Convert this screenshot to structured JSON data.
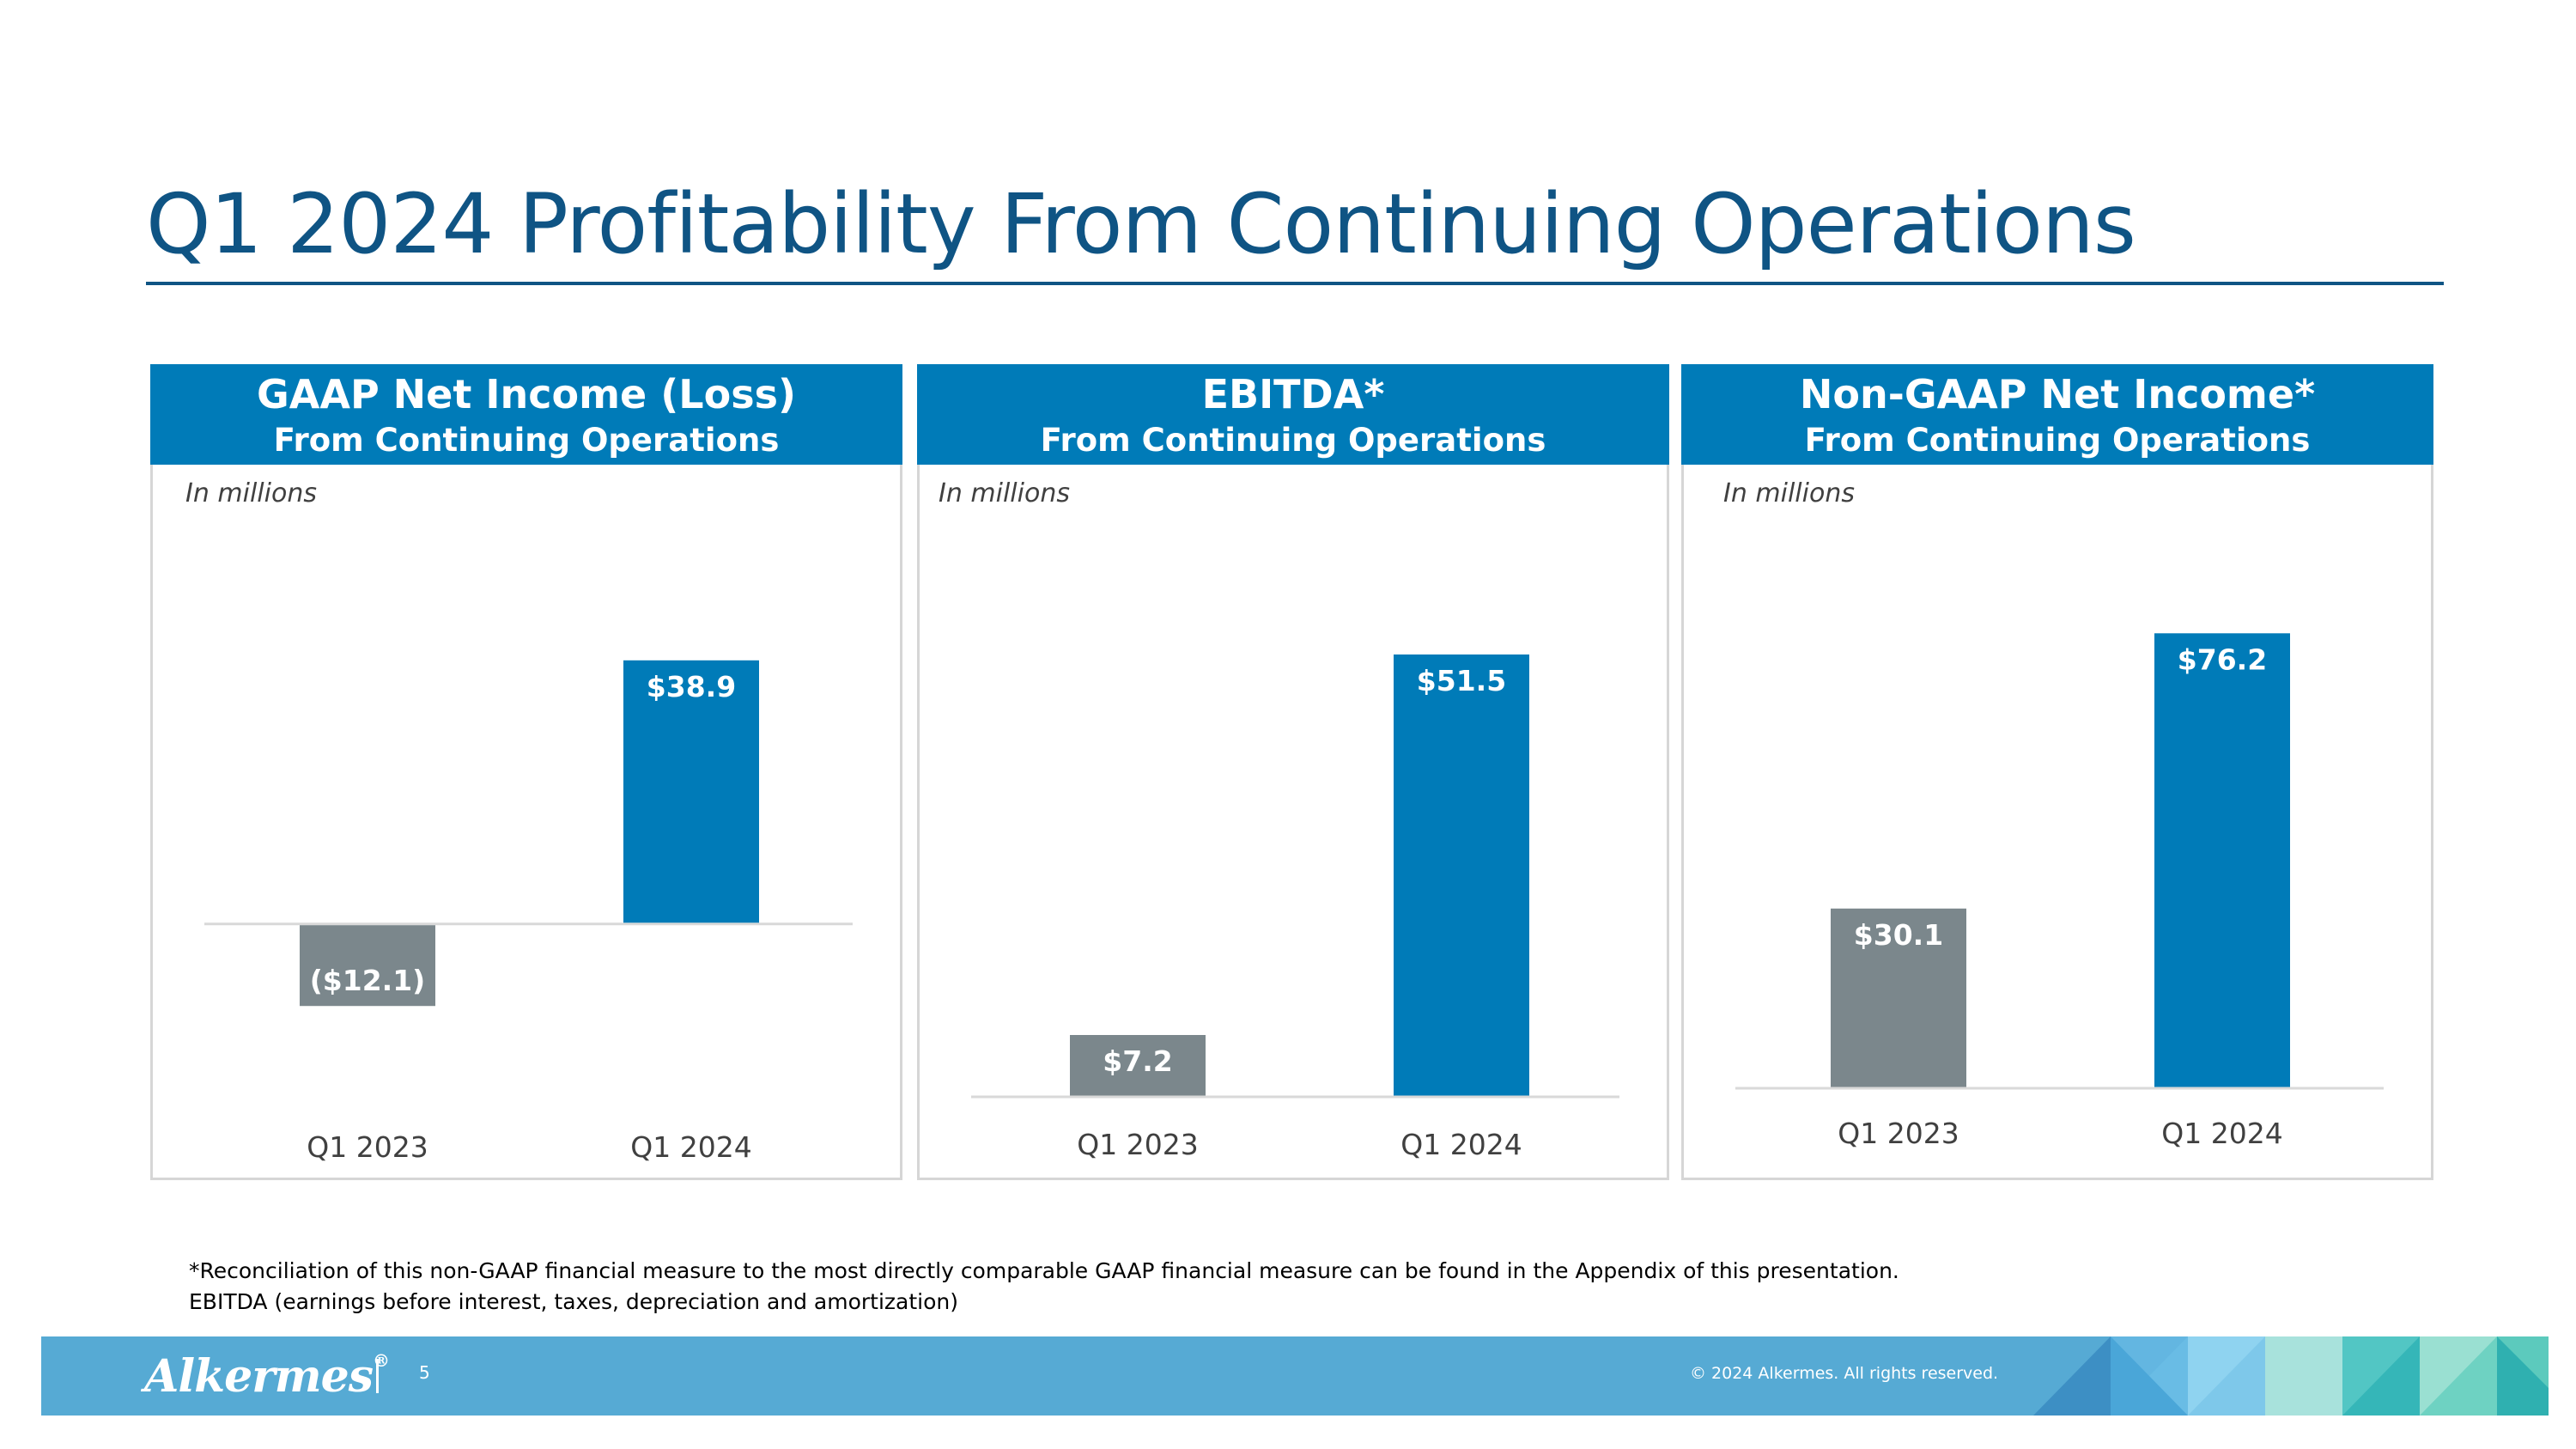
{
  "slide": {
    "title": "Q1 2024 Profitability From Continuing Operations",
    "page_number": "5",
    "copyright": "© 2024 Alkermes. All rights reserved.",
    "logo_text": "Alkermes",
    "logo_mark": "®"
  },
  "footnotes": [
    "*Reconciliation of this non-GAAP financial measure to the most directly comparable GAAP financial measure can be found in the Appendix of this presentation.",
    "EBITDA (earnings before interest, taxes, depreciation and amortization)"
  ],
  "colors": {
    "title": "#0f5484",
    "header": "#007bb8",
    "bar_prior": "#7b878c",
    "bar_current": "#007bb8",
    "footer": "#56aad4"
  },
  "chart_data": [
    {
      "type": "bar",
      "title": "GAAP Net Income (Loss)",
      "subtitle": "From Continuing Operations",
      "units_note": "In millions",
      "categories": [
        "Q1 2023",
        "Q1 2024"
      ],
      "values": [
        -12.1,
        38.9
      ],
      "labels": [
        "($12.1)",
        "$38.9"
      ],
      "ylim": [
        -16,
        48
      ]
    },
    {
      "type": "bar",
      "title": "EBITDA*",
      "subtitle": "From Continuing Operations",
      "units_note": "In millions",
      "categories": [
        "Q1 2023",
        "Q1 2024"
      ],
      "values": [
        7.2,
        51.5
      ],
      "labels": [
        "$7.2",
        "$51.5"
      ],
      "ylim": [
        0,
        58
      ]
    },
    {
      "type": "bar",
      "title": "Non-GAAP Net Income*",
      "subtitle": "From Continuing Operations",
      "units_note": "In millions",
      "categories": [
        "Q1 2023",
        "Q1 2024"
      ],
      "values": [
        30.1,
        76.2
      ],
      "labels": [
        "$30.1",
        "$76.2"
      ],
      "ylim": [
        0,
        82
      ]
    }
  ]
}
